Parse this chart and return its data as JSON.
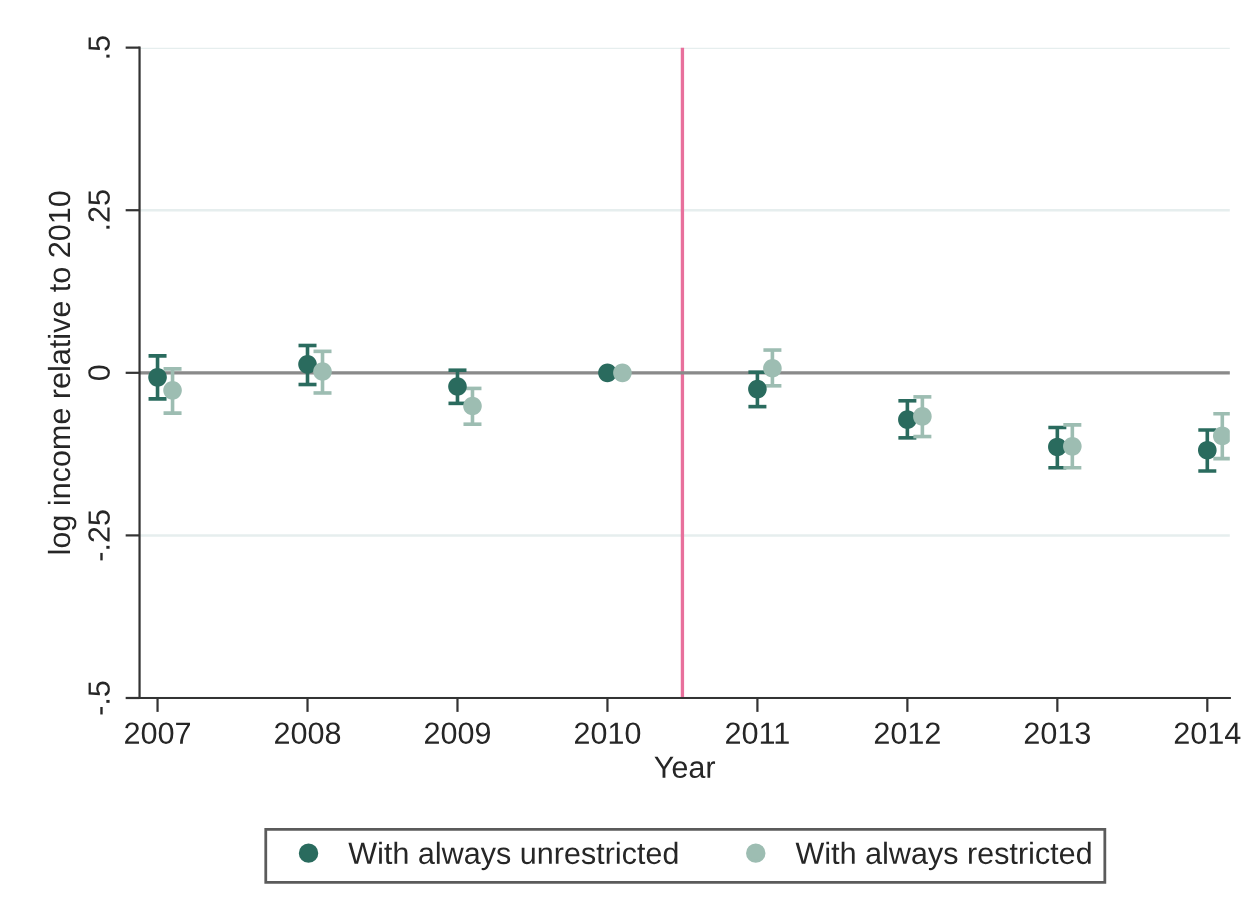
{
  "chart_data": {
    "type": "scatter",
    "xlabel": "Year",
    "ylabel": "log income relative to 2010",
    "xlim": [
      2006.88,
      2014.15
    ],
    "xticks": [
      2007,
      2008,
      2009,
      2010,
      2011,
      2012,
      2013,
      2014
    ],
    "ylim": [
      -0.5,
      0.5
    ],
    "yticks": [
      {
        "value": -0.5,
        "label": "-.5"
      },
      {
        "value": -0.25,
        "label": "-.25"
      },
      {
        "value": 0,
        "label": "0"
      },
      {
        "value": 0.25,
        "label": ".25"
      },
      {
        "value": 0.5,
        "label": ".5"
      }
    ],
    "grid": "y",
    "legend": "bottom",
    "marker": "circle",
    "ref_lines": [
      {
        "axis": "x",
        "value": 2010.5,
        "color": "#e8709c"
      },
      {
        "axis": "y",
        "value": 0,
        "color": "#8a8a8a"
      }
    ],
    "series": [
      {
        "name": "With always unrestricted",
        "color": "#2a6b5e",
        "x": [
          2007,
          2008,
          2009,
          2010,
          2011,
          2012,
          2013,
          2014
        ],
        "values": [
          -0.007,
          0.013,
          -0.021,
          0,
          -0.025,
          -0.072,
          -0.114,
          -0.119
        ],
        "errors": [
          [
            -0.04,
            0.026
          ],
          [
            -0.018,
            0.042
          ],
          [
            -0.047,
            0.004
          ],
          null,
          [
            -0.052,
            0.001
          ],
          [
            -0.1,
            -0.043
          ],
          [
            -0.146,
            -0.084
          ],
          [
            -0.151,
            -0.088
          ]
        ]
      },
      {
        "name": "With always restricted",
        "color": "#9dbdb2",
        "x": [
          2007.1,
          2008.1,
          2009.1,
          2010.1,
          2011.1,
          2012.1,
          2013.1,
          2014.1
        ],
        "values": [
          -0.027,
          0.002,
          -0.051,
          0,
          0.007,
          -0.067,
          -0.113,
          -0.097
        ],
        "errors": [
          [
            -0.062,
            0.006
          ],
          [
            -0.031,
            0.033
          ],
          [
            -0.079,
            -0.024
          ],
          null,
          [
            -0.02,
            0.035
          ],
          [
            -0.098,
            -0.037
          ],
          [
            -0.146,
            -0.08
          ],
          [
            -0.132,
            -0.063
          ]
        ]
      }
    ]
  }
}
